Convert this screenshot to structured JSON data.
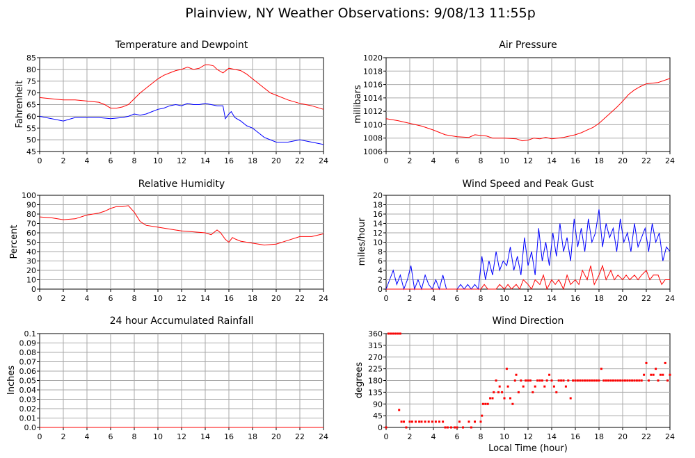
{
  "title": "Plainview, NY Weather Observations: 9/08/13 11:55p",
  "colors": {
    "red": "#ff0000",
    "blue": "#0000ff",
    "grid": "#a9a9a9"
  },
  "chart_data": [
    {
      "id": "temperature",
      "type": "line",
      "title": "Temperature and Dewpoint",
      "xlabel": "",
      "ylabel": "Fahrenheit",
      "xlim": [
        0,
        24
      ],
      "ylim": [
        45,
        85
      ],
      "xticks": [
        "0",
        "2",
        "4",
        "6",
        "8",
        "10",
        "12",
        "14",
        "16",
        "18",
        "20",
        "22",
        "24"
      ],
      "yticks": [
        "45",
        "50",
        "55",
        "60",
        "65",
        "70",
        "75",
        "80",
        "85"
      ],
      "grid": true,
      "series": [
        {
          "color": "#ff0000",
          "x": [
            0,
            1,
            2,
            3,
            4,
            5,
            5.5,
            6,
            6.5,
            7,
            7.5,
            8,
            8.5,
            9,
            9.5,
            10,
            10.5,
            11,
            11.5,
            12,
            12.5,
            13,
            13.5,
            14,
            14.3,
            14.7,
            15,
            15.5,
            16,
            16.5,
            17,
            17.5,
            18,
            18.5,
            19,
            19.5,
            20,
            21,
            22,
            23,
            24
          ],
          "y": [
            68,
            67.5,
            67,
            67,
            66.5,
            66,
            65,
            63.5,
            63.5,
            64,
            65,
            67.5,
            70,
            72,
            74,
            76,
            77.5,
            78.5,
            79.5,
            80,
            81,
            80,
            80.5,
            82,
            82,
            81.5,
            80,
            78.5,
            80.5,
            80,
            79.5,
            78,
            76,
            74,
            72,
            70,
            69,
            67,
            65.5,
            64.5,
            63
          ]
        },
        {
          "color": "#0000ff",
          "x": [
            0,
            1,
            2,
            3,
            4,
            5,
            6,
            7,
            7.5,
            8,
            8.5,
            9,
            9.5,
            10,
            10.5,
            11,
            11.5,
            12,
            12.5,
            13,
            13.5,
            14,
            14.5,
            15,
            15.5,
            15.7,
            16,
            16.2,
            16.5,
            17,
            17.5,
            18,
            18.5,
            19,
            19.5,
            20,
            21,
            22,
            23,
            24
          ],
          "y": [
            60,
            59,
            58,
            59.5,
            59.5,
            59.5,
            59,
            59.5,
            60,
            61,
            60.5,
            61,
            62,
            63,
            63.5,
            64.5,
            65,
            64.5,
            65.5,
            65,
            65,
            65.5,
            65,
            64.5,
            64.5,
            59,
            61,
            62,
            59.5,
            58,
            56,
            55,
            53,
            51,
            50,
            49,
            49,
            50,
            49,
            48
          ]
        }
      ]
    },
    {
      "id": "pressure",
      "type": "line",
      "title": "Air Pressure",
      "xlabel": "",
      "ylabel": "millibars",
      "xlim": [
        0,
        24
      ],
      "ylim": [
        1006,
        1020
      ],
      "xticks": [
        "0",
        "2",
        "4",
        "6",
        "8",
        "10",
        "12",
        "14",
        "16",
        "18",
        "20",
        "22",
        "24"
      ],
      "yticks": [
        "1006",
        "1008",
        "1010",
        "1012",
        "1014",
        "1016",
        "1018",
        "1020"
      ],
      "grid": true,
      "series": [
        {
          "color": "#ff0000",
          "x": [
            0,
            1,
            2,
            3,
            4,
            5,
            6,
            7,
            7.5,
            8,
            8.5,
            9,
            10,
            11,
            11.5,
            12,
            12.5,
            13,
            13.5,
            14,
            15,
            16,
            16.5,
            17,
            17.5,
            18,
            18.5,
            19,
            19.5,
            20,
            20.5,
            21,
            21.5,
            22,
            22.5,
            23,
            23.5,
            24
          ],
          "y": [
            1010.9,
            1010.6,
            1010.2,
            1009.8,
            1009.2,
            1008.5,
            1008.2,
            1008.1,
            1008.5,
            1008.4,
            1008.3,
            1008,
            1008,
            1007.9,
            1007.6,
            1007.7,
            1008,
            1007.9,
            1008.1,
            1007.9,
            1008.1,
            1008.5,
            1008.8,
            1009.2,
            1009.6,
            1010.2,
            1011,
            1011.8,
            1012.6,
            1013.5,
            1014.5,
            1015.2,
            1015.7,
            1016.1,
            1016.2,
            1016.3,
            1016.6,
            1016.9
          ]
        }
      ]
    },
    {
      "id": "humidity",
      "type": "line",
      "title": "Relative Humidity",
      "xlabel": "",
      "ylabel": "Percent",
      "xlim": [
        0,
        24
      ],
      "ylim": [
        0,
        100
      ],
      "xticks": [
        "0",
        "2",
        "4",
        "6",
        "8",
        "10",
        "12",
        "14",
        "16",
        "18",
        "20",
        "22",
        "24"
      ],
      "yticks": [
        "0",
        "10",
        "20",
        "30",
        "40",
        "50",
        "60",
        "70",
        "80",
        "90",
        "100"
      ],
      "grid": true,
      "series": [
        {
          "color": "#ff0000",
          "x": [
            0,
            1,
            2,
            3,
            4,
            5,
            5.5,
            6,
            6.5,
            7,
            7.5,
            8,
            8.5,
            9,
            10,
            11,
            12,
            13,
            14,
            14.5,
            15,
            15.3,
            15.7,
            16,
            16.3,
            16.6,
            17,
            18,
            19,
            20,
            21,
            22,
            23,
            24
          ],
          "y": [
            77,
            76,
            74,
            75,
            79,
            81,
            83,
            86,
            88,
            88,
            89,
            82,
            72,
            68,
            66,
            64,
            62,
            61,
            60,
            58,
            63,
            60,
            53,
            50,
            55,
            53,
            51,
            49,
            47,
            48,
            52,
            56,
            56,
            59
          ]
        }
      ]
    },
    {
      "id": "wind-speed",
      "type": "line",
      "title": "Wind Speed and Peak Gust",
      "xlabel": "",
      "ylabel": "miles/hour",
      "xlim": [
        0,
        24
      ],
      "ylim": [
        0,
        20
      ],
      "xticks": [
        "0",
        "2",
        "4",
        "6",
        "8",
        "10",
        "12",
        "14",
        "16",
        "18",
        "20",
        "22",
        "24"
      ],
      "yticks": [
        "0",
        "2",
        "4",
        "6",
        "8",
        "10",
        "12",
        "14",
        "16",
        "18",
        "20"
      ],
      "grid": true,
      "series": [
        {
          "color": "#0000ff",
          "x": [
            0,
            0.3,
            0.6,
            0.9,
            1.2,
            1.5,
            1.8,
            2.1,
            2.4,
            2.7,
            3,
            3.3,
            3.6,
            3.9,
            4.2,
            4.5,
            4.8,
            5.1,
            5.5,
            6,
            6.3,
            6.6,
            6.9,
            7.2,
            7.5,
            7.8,
            8.1,
            8.4,
            8.7,
            9,
            9.3,
            9.6,
            9.9,
            10.2,
            10.5,
            10.8,
            11.1,
            11.4,
            11.7,
            12,
            12.3,
            12.6,
            12.9,
            13.2,
            13.5,
            13.8,
            14.1,
            14.4,
            14.7,
            15,
            15.3,
            15.6,
            15.9,
            16.2,
            16.5,
            16.8,
            17.1,
            17.4,
            17.7,
            18,
            18.3,
            18.6,
            18.9,
            19.2,
            19.5,
            19.8,
            20.1,
            20.4,
            20.7,
            21,
            21.3,
            21.6,
            21.9,
            22.2,
            22.5,
            22.8,
            23.1,
            23.4,
            23.7,
            24
          ],
          "y": [
            0,
            2,
            4,
            1,
            3,
            0,
            2,
            5,
            0,
            2,
            0,
            3,
            1,
            0,
            2,
            0,
            3,
            0,
            0,
            0,
            1,
            0,
            1,
            0,
            1,
            0,
            7,
            2,
            6,
            3,
            8,
            4,
            6,
            5,
            9,
            4,
            7,
            3,
            11,
            5,
            8,
            3,
            13,
            6,
            10,
            5,
            12,
            7,
            14,
            8,
            11,
            6,
            15,
            9,
            13,
            8,
            15,
            10,
            12,
            17,
            9,
            14,
            11,
            13,
            8,
            15,
            10,
            12,
            8,
            14,
            9,
            11,
            13,
            8,
            14,
            10,
            12,
            6,
            9,
            8
          ]
        },
        {
          "color": "#ff0000",
          "x": [
            0,
            8,
            8.3,
            8.6,
            9,
            9.3,
            9.6,
            10,
            10.3,
            10.6,
            11,
            11.3,
            11.6,
            12,
            12.3,
            12.6,
            13,
            13.3,
            13.6,
            14,
            14.3,
            14.6,
            15,
            15.3,
            15.6,
            16,
            16.3,
            16.6,
            17,
            17.3,
            17.6,
            18,
            18.3,
            18.6,
            19,
            19.3,
            19.6,
            20,
            20.3,
            20.6,
            21,
            21.3,
            21.6,
            22,
            22.3,
            22.6,
            23,
            23.3,
            23.6,
            24
          ],
          "y": [
            0,
            0,
            1,
            0,
            0,
            0,
            1,
            0,
            1,
            0,
            1,
            0,
            2,
            1,
            0,
            2,
            1,
            3,
            0,
            2,
            1,
            2,
            0,
            3,
            1,
            2,
            1,
            4,
            2,
            5,
            1,
            3,
            5,
            2,
            4,
            2,
            3,
            2,
            3,
            2,
            3,
            2,
            3,
            4,
            2,
            3,
            3,
            1,
            2,
            2
          ]
        }
      ]
    },
    {
      "id": "rainfall",
      "type": "line",
      "title": "24 hour Accumulated Rainfall",
      "xlabel": "",
      "ylabel": "Inches",
      "xlim": [
        0,
        24
      ],
      "ylim": [
        0,
        0.1
      ],
      "xticks": [
        "0",
        "2",
        "4",
        "6",
        "8",
        "10",
        "12",
        "14",
        "16",
        "18",
        "20",
        "22",
        "24"
      ],
      "yticks": [
        "0.0",
        "0.01",
        "0.02",
        "0.03",
        "0.04",
        "0.05",
        "0.06",
        "0.07",
        "0.08",
        "0.09",
        "0.1"
      ],
      "grid": true,
      "series": [
        {
          "color": "#ff0000",
          "x": [
            0,
            24
          ],
          "y": [
            0,
            0
          ]
        }
      ]
    },
    {
      "id": "wind-direction",
      "type": "scatter",
      "title": "Wind Direction",
      "xlabel": "Local Time (hour)",
      "ylabel": "degrees",
      "xlim": [
        0,
        24
      ],
      "ylim": [
        0,
        360
      ],
      "xticks": [
        "0",
        "2",
        "4",
        "6",
        "8",
        "10",
        "12",
        "14",
        "16",
        "18",
        "20",
        "22",
        "24"
      ],
      "yticks": [
        "0",
        "45",
        "90",
        "135",
        "180",
        "225",
        "270",
        "315",
        "360"
      ],
      "grid": true,
      "series": [
        {
          "color": "#ff0000",
          "x": [
            0,
            0.2,
            0.4,
            0.6,
            0.8,
            1,
            1.2,
            1.1,
            1.3,
            1.5,
            1.7,
            2,
            2.2,
            2.5,
            2.8,
            3,
            3.3,
            3.6,
            3.9,
            4.2,
            4.5,
            4.8,
            5,
            5.2,
            5.5,
            5.8,
            6,
            6.2,
            6.5,
            7,
            7.2,
            7.5,
            8,
            8.1,
            8.2,
            8.4,
            8.6,
            8.8,
            9,
            9.1,
            9.3,
            9.5,
            9.6,
            9.8,
            10,
            10.2,
            10.3,
            10.5,
            10.7,
            10.9,
            11,
            11.2,
            11.4,
            11.6,
            11.8,
            12,
            12.2,
            12.4,
            12.6,
            12.8,
            13,
            13.2,
            13.4,
            13.6,
            13.8,
            14,
            14.2,
            14.4,
            14.6,
            14.8,
            15,
            15.2,
            15.4,
            15.6,
            15.8,
            16,
            16.2,
            16.4,
            16.6,
            16.8,
            17,
            17.2,
            17.4,
            17.6,
            17.8,
            18,
            18.2,
            18.4,
            18.6,
            18.8,
            19,
            19.2,
            19.4,
            19.6,
            19.8,
            20,
            20.2,
            20.4,
            20.6,
            20.8,
            21,
            21.2,
            21.4,
            21.6,
            21.8,
            22,
            22.2,
            22.4,
            22.6,
            22.8,
            23,
            23.2,
            23.4,
            23.6,
            23.8,
            24
          ],
          "y": [
            0,
            360,
            360,
            360,
            360,
            360,
            360,
            67,
            22,
            22,
            0,
            22,
            22,
            22,
            22,
            22,
            22,
            22,
            22,
            22,
            22,
            22,
            0,
            0,
            0,
            0,
            0,
            22,
            0,
            22,
            0,
            22,
            22,
            45,
            90,
            90,
            90,
            112,
            112,
            135,
            180,
            135,
            157,
            135,
            112,
            225,
            157,
            112,
            90,
            180,
            202,
            135,
            180,
            157,
            180,
            180,
            180,
            135,
            157,
            180,
            180,
            180,
            157,
            180,
            202,
            180,
            157,
            135,
            180,
            180,
            180,
            157,
            180,
            112,
            180,
            180,
            180,
            180,
            180,
            180,
            180,
            180,
            180,
            180,
            180,
            180,
            225,
            180,
            180,
            180,
            180,
            180,
            180,
            180,
            180,
            180,
            180,
            180,
            180,
            180,
            180,
            180,
            180,
            180,
            202,
            247,
            180,
            202,
            202,
            225,
            180,
            202,
            202,
            247,
            180,
            202
          ]
        }
      ]
    }
  ]
}
